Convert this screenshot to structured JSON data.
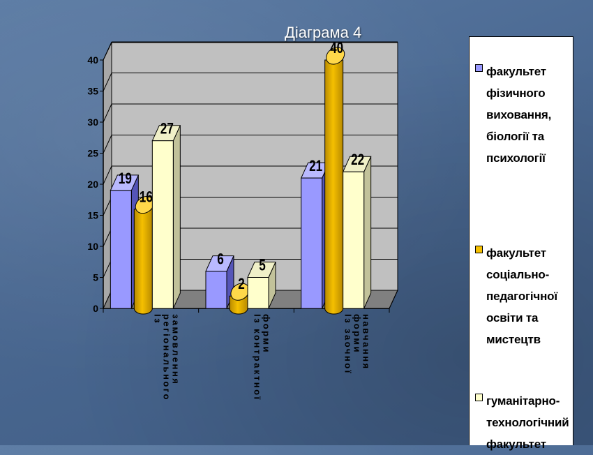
{
  "slide": {
    "title": "Діаграма 4"
  },
  "colors": {
    "series": [
      "#9999ff",
      "#f5c000",
      "#ffffcc"
    ],
    "series_dark": [
      "#5555b8",
      "#b88a00",
      "#c2c29a"
    ],
    "series_top": [
      "#b9b9ff",
      "#ffd84a",
      "#f0f0c8"
    ],
    "wall": "#c0c0c0",
    "floor": "#808080"
  },
  "legend": {
    "items": [
      {
        "label": "факультет фізичного виховання, біології та психології",
        "swatch_color": "#9999ff"
      },
      {
        "label": "факультет соціально-педагогічної освіти та мистецтв",
        "swatch_color": "#f5c000"
      },
      {
        "label": "гуманітарно-технологічний факультет",
        "swatch_color": "#ffffcc"
      }
    ]
  },
  "chart_data": {
    "type": "bar",
    "title": "Діаграма 4",
    "categories": [
      "Із регіонального замовлення",
      "Із контрактної форми",
      "Із заочної форми навчання"
    ],
    "series": [
      {
        "name": "факультет фізичного виховання, біології та психології",
        "values": [
          19,
          6,
          21
        ],
        "shape": "box"
      },
      {
        "name": "факультет соціально-педагогічної освіти та мистецтв",
        "values": [
          16,
          2,
          40
        ],
        "shape": "cylinder"
      },
      {
        "name": "гуманітарно-технологічний факультет",
        "values": [
          27,
          5,
          22
        ],
        "shape": "box"
      }
    ],
    "ylim": [
      0,
      40
    ],
    "yticks": [
      0,
      5,
      10,
      15,
      20,
      25,
      30,
      35,
      40
    ],
    "grid": true,
    "legend_position": "right",
    "data_labels": true
  }
}
